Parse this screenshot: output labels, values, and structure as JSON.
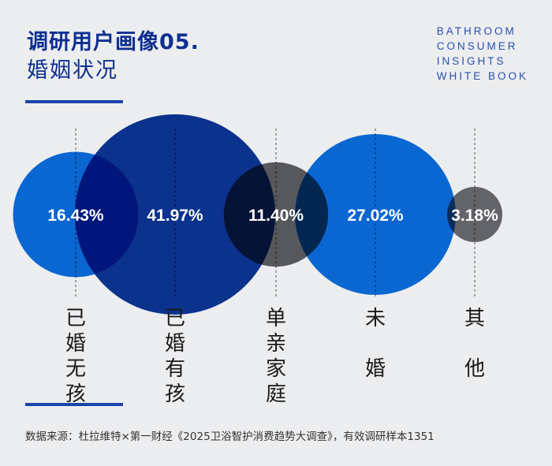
{
  "header": {
    "title": "调研用户画像05.",
    "subtitle": "婚姻状况",
    "brand_lines": [
      "BATHROOM",
      "CONSUMER",
      "INSIGHTS",
      "WHITE BOOK"
    ]
  },
  "chart_data": {
    "type": "bubble",
    "title": "婚姻状况",
    "categories": [
      "已婚无孩",
      "已婚有孩",
      "单亲家庭",
      "未婚",
      "其他"
    ],
    "values": [
      16.43,
      41.97,
      11.4,
      27.02,
      3.18
    ],
    "labels": [
      "16.43%",
      "41.97%",
      "11.40%",
      "27.02%",
      "3.18%"
    ],
    "unit": "%",
    "colors": [
      "#0a6fe0",
      "#0b3596",
      "#5e5f63",
      "#0a6fe0",
      "#6b6c70"
    ]
  },
  "footer": {
    "source": "数据来源：杜拉维特×第一财经《2025卫浴智护消费趋势大调查》，有效调研样本1351"
  }
}
